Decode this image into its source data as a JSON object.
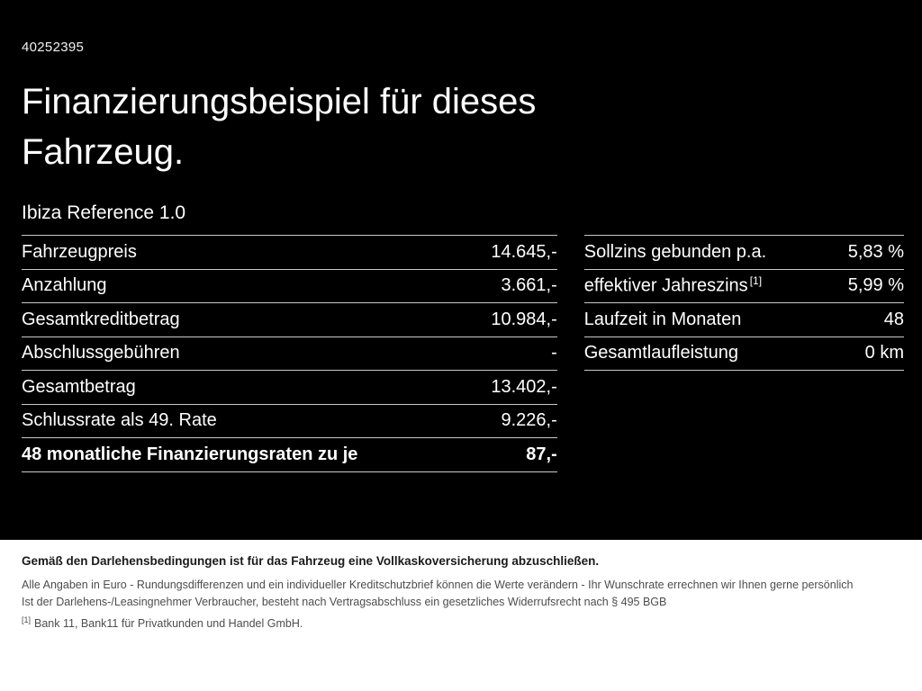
{
  "header": {
    "id": "40252395",
    "title_line1": "Finanzierungsbeispiel für dieses",
    "title_line2": "Fahrzeug.",
    "model": "Ibiza Reference 1.0"
  },
  "left_table": {
    "rows": [
      {
        "label": "Fahrzeugpreis",
        "value": "14.645,-"
      },
      {
        "label": "Anzahlung",
        "value": "3.661,-"
      },
      {
        "label": "Gesamtkreditbetrag",
        "value": "10.984,-"
      },
      {
        "label": "Abschlussgebühren",
        "value": "-"
      },
      {
        "label": "Gesamtbetrag",
        "value": "13.402,-"
      },
      {
        "label": "Schlussrate als 49. Rate",
        "value": "9.226,-"
      },
      {
        "label": "48 monatliche Finanzierungsraten zu je",
        "value": "87,-"
      }
    ]
  },
  "right_table": {
    "rows": [
      {
        "label": "Sollzins gebunden p.a.",
        "value": "5,83 %"
      },
      {
        "label": "effektiver Jahreszins",
        "sup": "[1]",
        "value": "5,99 %"
      },
      {
        "label": "Laufzeit in Monaten",
        "value": "48"
      },
      {
        "label": "Gesamtlaufleistung",
        "value": "0 km"
      }
    ]
  },
  "footer": {
    "line1": "Gemäß den Darlehensbedingungen ist für das Fahrzeug eine Vollkaskoversicherung abzuschließen.",
    "line2": "Alle Angaben in Euro - Rundungsdifferenzen und ein individueller Kreditschutzbrief können die Werte verändern - Ihr Wunschrate errechnen wir Ihnen gerne persönlich",
    "line3": "Ist der Darlehens-/Leasingnehmer Verbraucher, besteht nach Vertragsabschluss ein gesetzliches Widerrufsrecht nach § 495 BGB",
    "footnote_marker": "[1]",
    "footnote_text": "Bank 11, Bank11 für Privatkunden und Handel GmbH."
  }
}
